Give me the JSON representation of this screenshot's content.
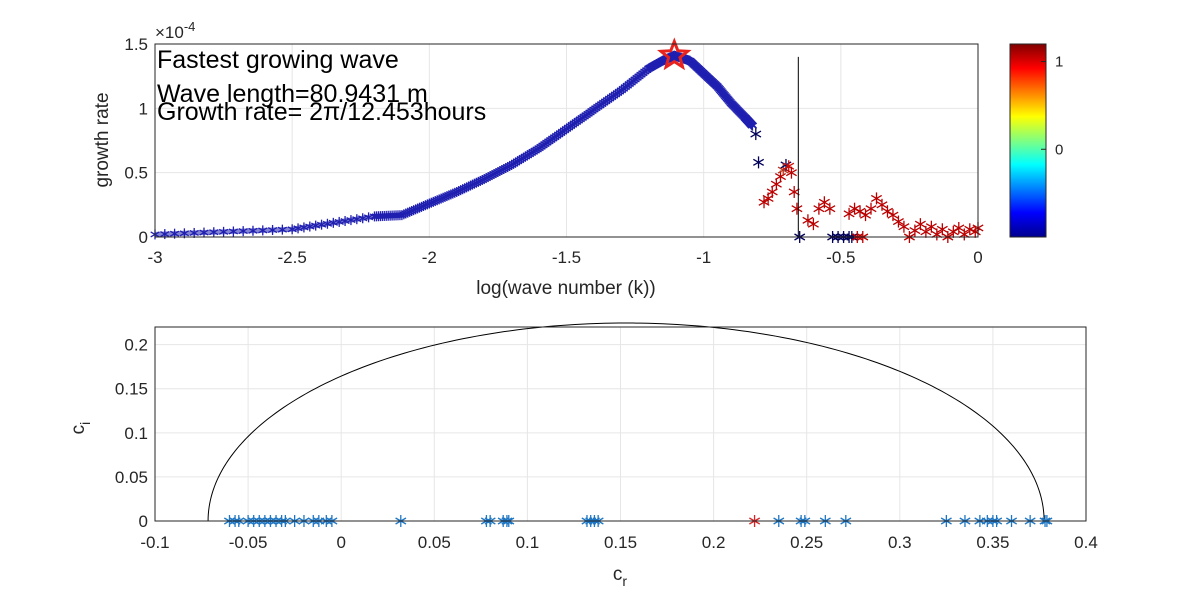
{
  "chart_data": [
    {
      "type": "scatter",
      "xlabel": "log(wave number (k))",
      "ylabel": "growth rate",
      "y_exponent": "×10^{-4}",
      "xlim": [
        -3,
        0
      ],
      "ylim": [
        0,
        1.5
      ],
      "x_ticks": [
        "-3",
        "-2.5",
        "-2",
        "-1.5",
        "-1",
        "-0.5",
        "0"
      ],
      "y_ticks": [
        "0",
        "0.5",
        "1",
        "1.5"
      ],
      "grid": true,
      "annotations": [
        "Fastest growing wave",
        "Wave length=80.9431 m",
        "Growth rate= 2π/12.453hours"
      ],
      "marker": "asterisk",
      "colorbar": {
        "colormap": "jet",
        "range": [
          -1,
          1.2
        ],
        "tick_labels": [
          "0",
          "1"
        ],
        "tick_values": [
          0,
          1
        ],
        "placement": "right"
      },
      "peak_marker": {
        "x": -1.107,
        "y": 1.41,
        "shape": "pentagram",
        "color": "#e8231e"
      },
      "vertical_line": {
        "x": -0.655,
        "y_top": 1.4,
        "color": "#000000"
      },
      "main_curve": {
        "color_low": "#1f1fb0",
        "x": [
          -3,
          -2.5,
          -2.2,
          -2.1,
          -2.0,
          -1.9,
          -1.8,
          -1.7,
          -1.6,
          -1.5,
          -1.4,
          -1.3,
          -1.2,
          -1.15,
          -1.107,
          -1.05,
          -1.0,
          -0.95,
          -0.9,
          -0.85,
          -0.82
        ],
        "y": [
          0.02,
          0.06,
          0.16,
          0.17,
          0.26,
          0.35,
          0.45,
          0.56,
          0.69,
          0.84,
          0.99,
          1.14,
          1.31,
          1.37,
          1.41,
          1.37,
          1.27,
          1.17,
          1.04,
          0.93,
          0.86
        ]
      },
      "points": [
        {
          "x": -0.81,
          "y": 0.8,
          "v": -1
        },
        {
          "x": -0.8,
          "y": 0.58,
          "v": -1
        },
        {
          "x": -0.78,
          "y": 0.27,
          "v": 1
        },
        {
          "x": -0.765,
          "y": 0.3,
          "v": 1
        },
        {
          "x": -0.75,
          "y": 0.35,
          "v": 1
        },
        {
          "x": -0.735,
          "y": 0.41,
          "v": 1
        },
        {
          "x": -0.72,
          "y": 0.47,
          "v": 1
        },
        {
          "x": -0.71,
          "y": 0.52,
          "v": 0.3
        },
        {
          "x": -0.7,
          "y": 0.56,
          "v": -1
        },
        {
          "x": -0.69,
          "y": 0.55,
          "v": 0.8
        },
        {
          "x": -0.68,
          "y": 0.5,
          "v": 1
        },
        {
          "x": -0.67,
          "y": 0.35,
          "v": 1
        },
        {
          "x": -0.66,
          "y": 0.22,
          "v": 1
        },
        {
          "x": -0.65,
          "y": 0.0,
          "v": -1
        },
        {
          "x": -0.62,
          "y": 0.13,
          "v": 1
        },
        {
          "x": -0.6,
          "y": 0.1,
          "v": 1
        },
        {
          "x": -0.58,
          "y": 0.22,
          "v": 1
        },
        {
          "x": -0.56,
          "y": 0.27,
          "v": 1
        },
        {
          "x": -0.54,
          "y": 0.22,
          "v": 1
        },
        {
          "x": -0.53,
          "y": 0.0,
          "v": -1
        },
        {
          "x": -0.51,
          "y": 0.0,
          "v": -1
        },
        {
          "x": -0.49,
          "y": 0.0,
          "v": -1
        },
        {
          "x": -0.47,
          "y": 0.0,
          "v": -1
        },
        {
          "x": -0.46,
          "y": 0.0,
          "v": -1
        },
        {
          "x": -0.44,
          "y": 0.0,
          "v": 1
        },
        {
          "x": -0.42,
          "y": 0.0,
          "v": 1
        },
        {
          "x": -0.47,
          "y": 0.18,
          "v": 1
        },
        {
          "x": -0.45,
          "y": 0.22,
          "v": 1
        },
        {
          "x": -0.43,
          "y": 0.2,
          "v": 1
        },
        {
          "x": -0.41,
          "y": 0.17,
          "v": 1
        },
        {
          "x": -0.39,
          "y": 0.22,
          "v": 1
        },
        {
          "x": -0.37,
          "y": 0.3,
          "v": 1
        },
        {
          "x": -0.35,
          "y": 0.25,
          "v": 1
        },
        {
          "x": -0.33,
          "y": 0.2,
          "v": 1
        },
        {
          "x": -0.31,
          "y": 0.17,
          "v": 1
        },
        {
          "x": -0.29,
          "y": 0.12,
          "v": 1
        },
        {
          "x": -0.27,
          "y": 0.08,
          "v": 1
        },
        {
          "x": -0.25,
          "y": 0.0,
          "v": 1
        },
        {
          "x": -0.23,
          "y": 0.05,
          "v": 1
        },
        {
          "x": -0.21,
          "y": 0.1,
          "v": 1
        },
        {
          "x": -0.19,
          "y": 0.04,
          "v": 1
        },
        {
          "x": -0.17,
          "y": 0.08,
          "v": 1
        },
        {
          "x": -0.15,
          "y": 0.02,
          "v": 1
        },
        {
          "x": -0.13,
          "y": 0.06,
          "v": 1
        },
        {
          "x": -0.11,
          "y": 0.0,
          "v": 1
        },
        {
          "x": -0.09,
          "y": 0.04,
          "v": 1
        },
        {
          "x": -0.07,
          "y": 0.07,
          "v": 1
        },
        {
          "x": -0.05,
          "y": 0.02,
          "v": 1
        },
        {
          "x": -0.03,
          "y": 0.06,
          "v": 1
        },
        {
          "x": -0.01,
          "y": 0.04,
          "v": 1
        },
        {
          "x": 0.0,
          "y": 0.07,
          "v": 1
        }
      ]
    },
    {
      "type": "scatter",
      "xlabel": "c_r",
      "ylabel": "c_i",
      "xlim": [
        -0.1,
        0.4
      ],
      "ylim": [
        0,
        0.22
      ],
      "x_ticks": [
        "-0.1",
        "-0.05",
        "0",
        "0.05",
        "0.1",
        "0.15",
        "0.2",
        "0.25",
        "0.3",
        "0.35",
        "0.4"
      ],
      "y_ticks": [
        "0",
        "0.05",
        "0.1",
        "0.15",
        "0.2"
      ],
      "grid": true,
      "marker": "asterisk",
      "marker_color": "#1f77c4",
      "highlight_color": "#d62728",
      "semicircle": {
        "center": 0.153,
        "radius": 0.2245,
        "color": "#000000"
      },
      "x": [
        -0.06,
        -0.057,
        -0.055,
        -0.05,
        -0.047,
        -0.044,
        -0.041,
        -0.038,
        -0.035,
        -0.032,
        -0.03,
        -0.025,
        -0.02,
        -0.015,
        -0.012,
        -0.008,
        -0.005,
        0.032,
        0.078,
        0.08,
        0.087,
        0.089,
        0.09,
        0.132,
        0.134,
        0.136,
        0.138,
        0.222,
        0.235,
        0.247,
        0.249,
        0.26,
        0.271,
        0.325,
        0.335,
        0.343,
        0.347,
        0.35,
        0.352,
        0.36,
        0.37,
        0.378,
        0.379
      ],
      "y": [
        0,
        0,
        0,
        0,
        0,
        0,
        0,
        0,
        0,
        0,
        0,
        0,
        0,
        0,
        0,
        0,
        0,
        0,
        0,
        0,
        0,
        0,
        0,
        0,
        0,
        0,
        0,
        0,
        0,
        0,
        0,
        0,
        0,
        0,
        0,
        0,
        0,
        0,
        0,
        0,
        0,
        0,
        0
      ],
      "highlight_x": [
        0.222
      ]
    }
  ]
}
